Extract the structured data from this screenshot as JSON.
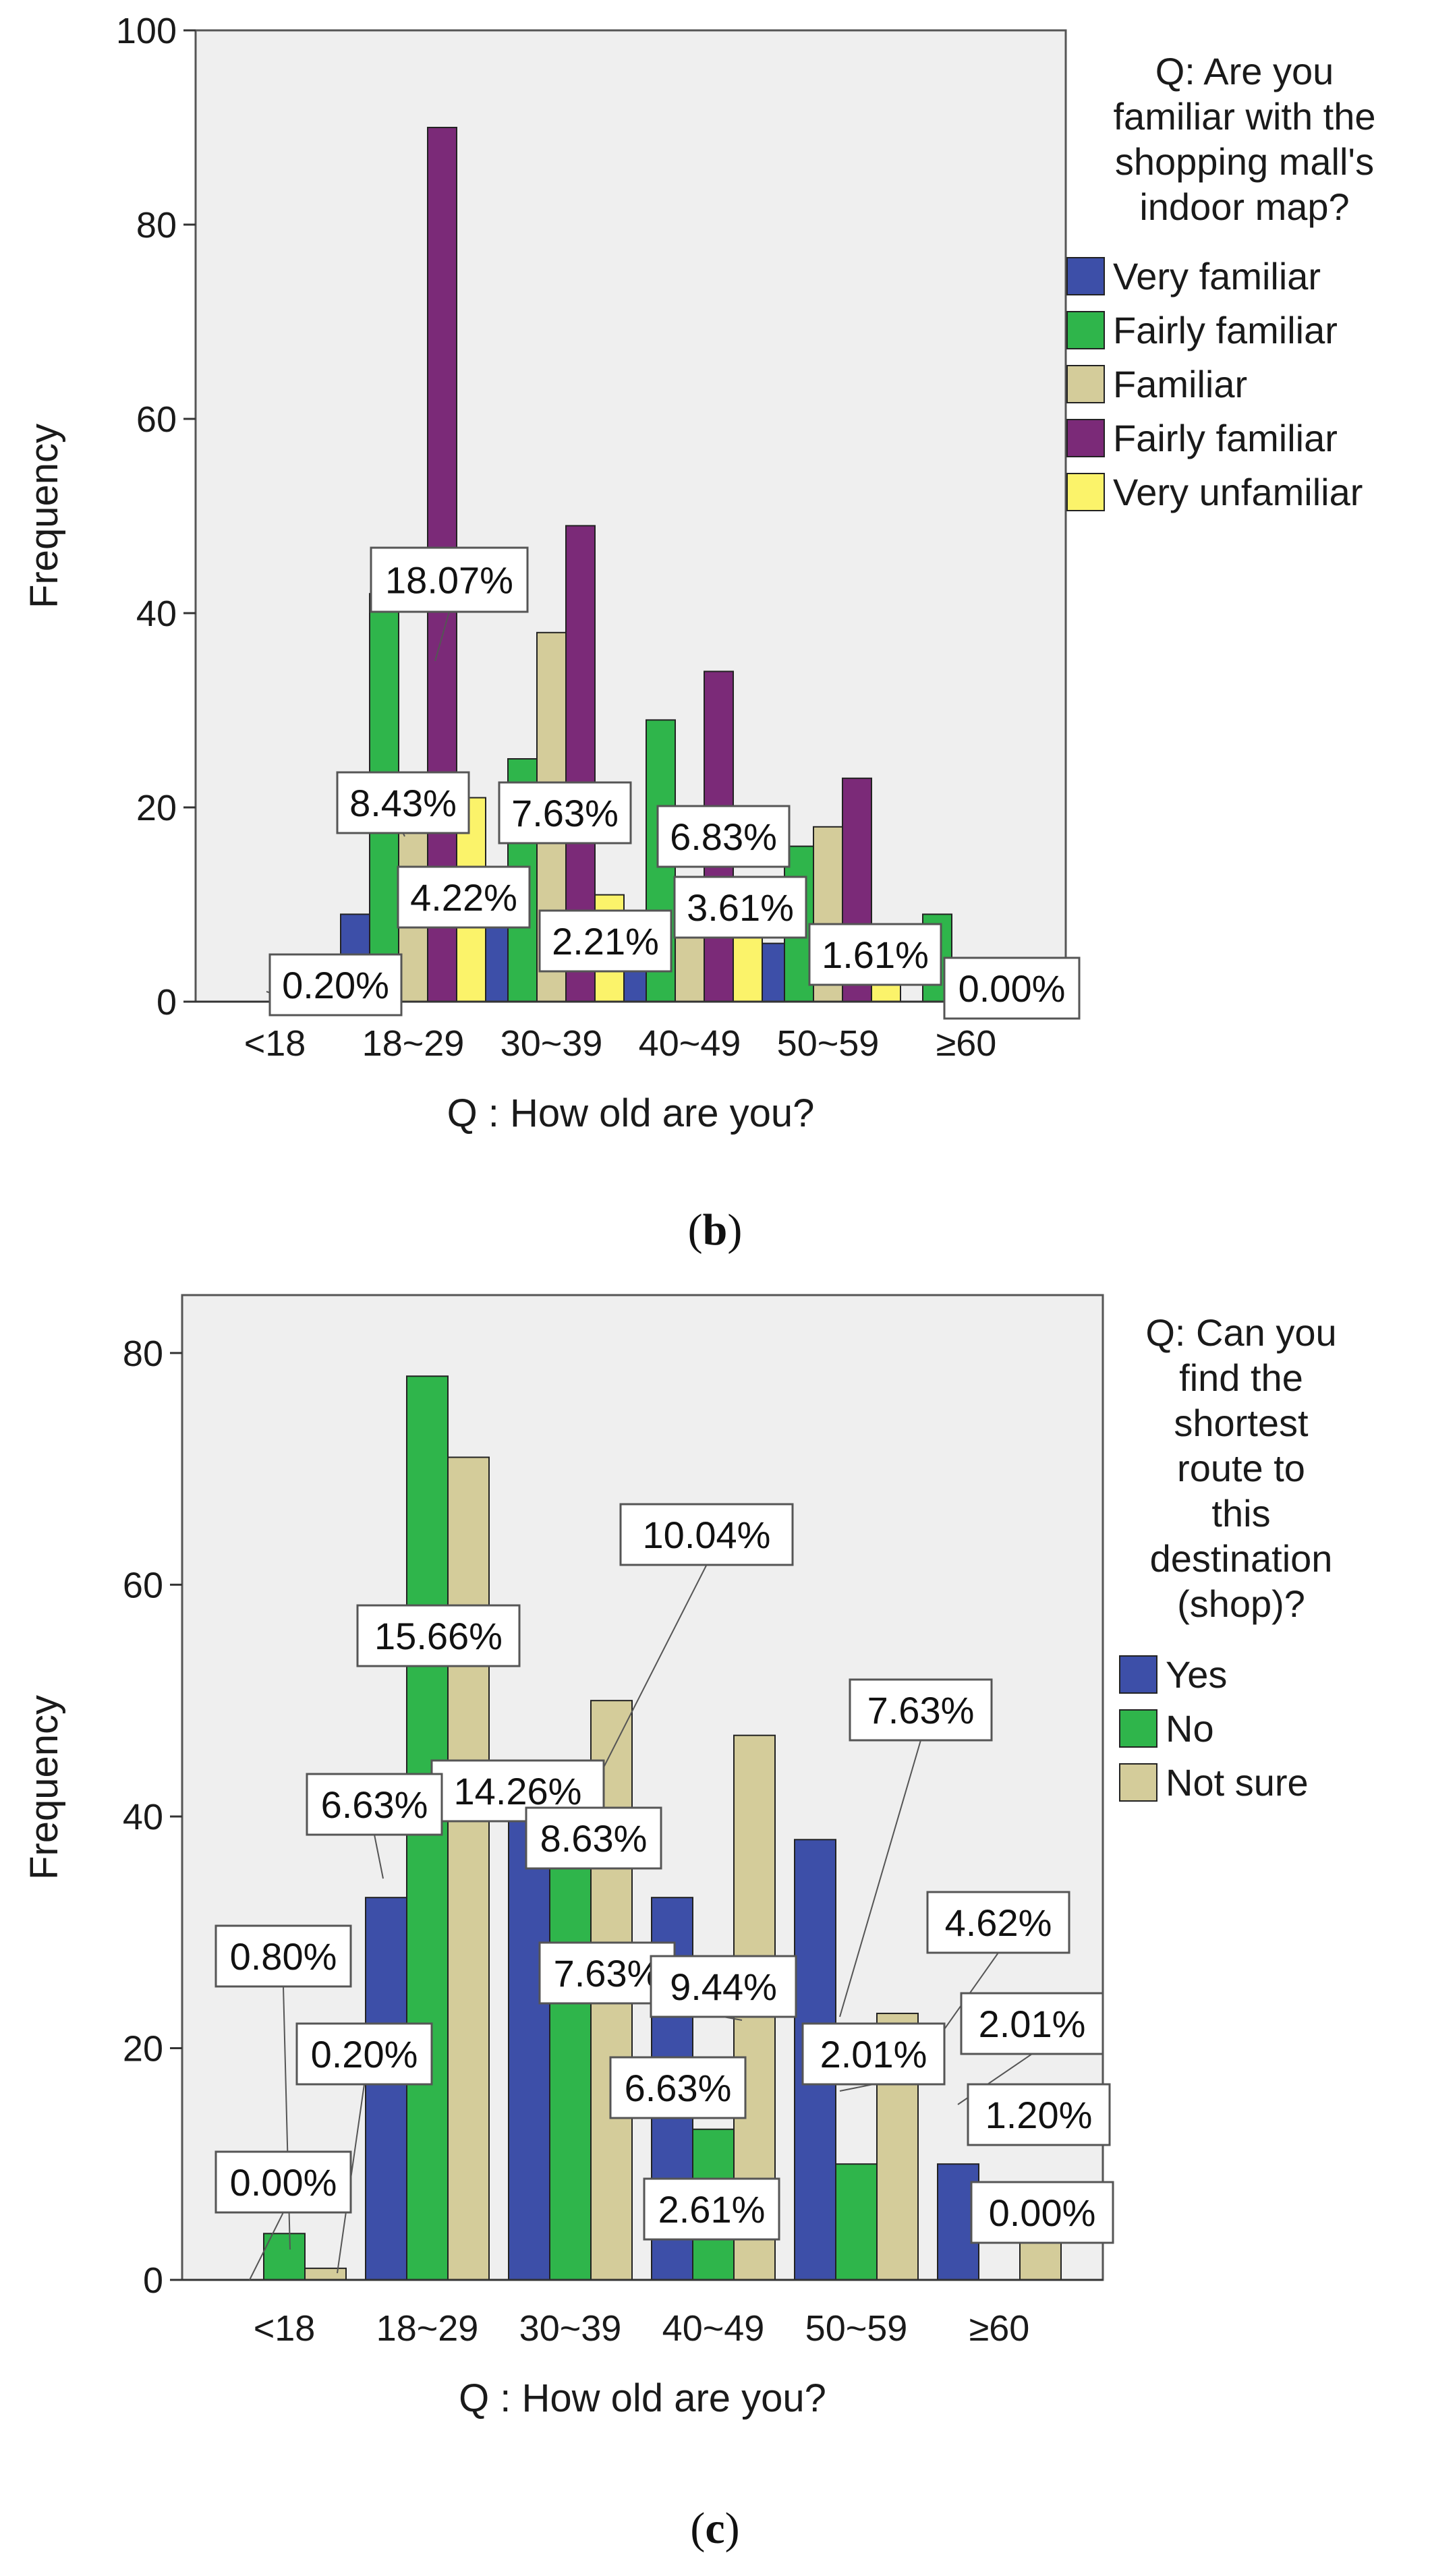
{
  "chart_data": [
    {
      "type": "bar",
      "panel_label": "b",
      "categories": [
        "<18",
        "18~29",
        "30~39",
        "40~49",
        "50~59",
        "≥60"
      ],
      "xlabel": "Q : How old are you?",
      "ylabel": "Frequency",
      "ylim": [
        0,
        100
      ],
      "yticks": [
        0,
        20,
        40,
        60,
        80,
        100
      ],
      "legend_title": "Q: Are you familiar with the shopping mall's indoor map?",
      "legend_title_lines": [
        "Q: Are you",
        "familiar with the",
        "shopping mall's",
        "indoor map?"
      ],
      "legend_position": "right",
      "series": [
        {
          "name": "Very familiar",
          "color": "#3d4fa8",
          "values": [
            0,
            9,
            8,
            4,
            6,
            0
          ]
        },
        {
          "name": "Fairly familiar",
          "color": "#2fb54b",
          "values": [
            0,
            42,
            25,
            29,
            16,
            9
          ]
        },
        {
          "name": "Familiar",
          "color": "#d4cc9a",
          "values": [
            0,
            20,
            38,
            10,
            18,
            3
          ]
        },
        {
          "name": "Fairly familiar",
          "color": "#7b2a78",
          "values": [
            0,
            90,
            49,
            34,
            23,
            4
          ]
        },
        {
          "name": "Very unfamiliar",
          "color": "#fbf36a",
          "values": [
            0,
            21,
            11,
            10,
            8,
            3
          ]
        }
      ],
      "annotations": [
        "18.07%",
        "8.43%",
        "4.22%",
        "7.63%",
        "2.21%",
        "6.83%",
        "3.61%",
        "1.61%",
        "0.20%",
        "0.00%"
      ]
    },
    {
      "type": "bar",
      "panel_label": "c",
      "categories": [
        "<18",
        "18~29",
        "30~39",
        "40~49",
        "50~59",
        "≥60"
      ],
      "xlabel": "Q : How old are you?",
      "ylabel": "Frequency",
      "ylim": [
        0,
        85
      ],
      "yticks": [
        0,
        20,
        40,
        60,
        80
      ],
      "legend_title": "Q: Can you find the shortest route to this destination (shop)?",
      "legend_title_lines": [
        "Q: Can you",
        "find the",
        "shortest",
        "route to",
        "this",
        "destination",
        "(shop)?"
      ],
      "legend_position": "right",
      "series": [
        {
          "name": "Yes",
          "color": "#3d4fa8",
          "values": [
            0,
            33,
            43,
            33,
            38,
            10
          ]
        },
        {
          "name": "No",
          "color": "#2fb54b",
          "values": [
            4,
            78,
            38,
            13,
            10,
            0
          ]
        },
        {
          "name": "Not sure",
          "color": "#d4cc9a",
          "values": [
            1,
            71,
            50,
            47,
            23,
            6
          ]
        }
      ],
      "annotations": [
        "15.66%",
        "10.04%",
        "14.26%",
        "6.63%",
        "8.63%",
        "7.63%",
        "0.80%",
        "0.20%",
        "0.00%",
        "9.44%",
        "6.63%",
        "2.61%",
        "7.63%",
        "4.62%",
        "2.01%",
        "2.01%",
        "1.20%",
        "0.00%"
      ]
    }
  ]
}
